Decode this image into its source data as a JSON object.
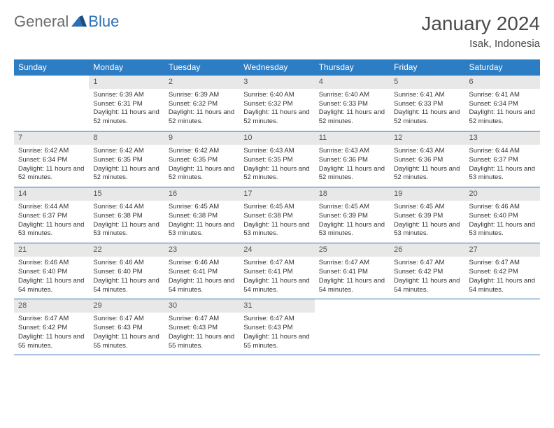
{
  "logo": {
    "general": "General",
    "blue": "Blue"
  },
  "title": "January 2024",
  "location": "Isak, Indonesia",
  "headers": [
    "Sunday",
    "Monday",
    "Tuesday",
    "Wednesday",
    "Thursday",
    "Friday",
    "Saturday"
  ],
  "header_bg": "#2d7dc4",
  "header_fg": "#ffffff",
  "border_color": "#2d6fb5",
  "daynum_bg": "#e8e8e8",
  "weeks": [
    [
      {
        "n": "",
        "sr": "",
        "ss": "",
        "dl": ""
      },
      {
        "n": "1",
        "sr": "Sunrise: 6:39 AM",
        "ss": "Sunset: 6:31 PM",
        "dl": "Daylight: 11 hours and 52 minutes."
      },
      {
        "n": "2",
        "sr": "Sunrise: 6:39 AM",
        "ss": "Sunset: 6:32 PM",
        "dl": "Daylight: 11 hours and 52 minutes."
      },
      {
        "n": "3",
        "sr": "Sunrise: 6:40 AM",
        "ss": "Sunset: 6:32 PM",
        "dl": "Daylight: 11 hours and 52 minutes."
      },
      {
        "n": "4",
        "sr": "Sunrise: 6:40 AM",
        "ss": "Sunset: 6:33 PM",
        "dl": "Daylight: 11 hours and 52 minutes."
      },
      {
        "n": "5",
        "sr": "Sunrise: 6:41 AM",
        "ss": "Sunset: 6:33 PM",
        "dl": "Daylight: 11 hours and 52 minutes."
      },
      {
        "n": "6",
        "sr": "Sunrise: 6:41 AM",
        "ss": "Sunset: 6:34 PM",
        "dl": "Daylight: 11 hours and 52 minutes."
      }
    ],
    [
      {
        "n": "7",
        "sr": "Sunrise: 6:42 AM",
        "ss": "Sunset: 6:34 PM",
        "dl": "Daylight: 11 hours and 52 minutes."
      },
      {
        "n": "8",
        "sr": "Sunrise: 6:42 AM",
        "ss": "Sunset: 6:35 PM",
        "dl": "Daylight: 11 hours and 52 minutes."
      },
      {
        "n": "9",
        "sr": "Sunrise: 6:42 AM",
        "ss": "Sunset: 6:35 PM",
        "dl": "Daylight: 11 hours and 52 minutes."
      },
      {
        "n": "10",
        "sr": "Sunrise: 6:43 AM",
        "ss": "Sunset: 6:35 PM",
        "dl": "Daylight: 11 hours and 52 minutes."
      },
      {
        "n": "11",
        "sr": "Sunrise: 6:43 AM",
        "ss": "Sunset: 6:36 PM",
        "dl": "Daylight: 11 hours and 52 minutes."
      },
      {
        "n": "12",
        "sr": "Sunrise: 6:43 AM",
        "ss": "Sunset: 6:36 PM",
        "dl": "Daylight: 11 hours and 52 minutes."
      },
      {
        "n": "13",
        "sr": "Sunrise: 6:44 AM",
        "ss": "Sunset: 6:37 PM",
        "dl": "Daylight: 11 hours and 53 minutes."
      }
    ],
    [
      {
        "n": "14",
        "sr": "Sunrise: 6:44 AM",
        "ss": "Sunset: 6:37 PM",
        "dl": "Daylight: 11 hours and 53 minutes."
      },
      {
        "n": "15",
        "sr": "Sunrise: 6:44 AM",
        "ss": "Sunset: 6:38 PM",
        "dl": "Daylight: 11 hours and 53 minutes."
      },
      {
        "n": "16",
        "sr": "Sunrise: 6:45 AM",
        "ss": "Sunset: 6:38 PM",
        "dl": "Daylight: 11 hours and 53 minutes."
      },
      {
        "n": "17",
        "sr": "Sunrise: 6:45 AM",
        "ss": "Sunset: 6:38 PM",
        "dl": "Daylight: 11 hours and 53 minutes."
      },
      {
        "n": "18",
        "sr": "Sunrise: 6:45 AM",
        "ss": "Sunset: 6:39 PM",
        "dl": "Daylight: 11 hours and 53 minutes."
      },
      {
        "n": "19",
        "sr": "Sunrise: 6:45 AM",
        "ss": "Sunset: 6:39 PM",
        "dl": "Daylight: 11 hours and 53 minutes."
      },
      {
        "n": "20",
        "sr": "Sunrise: 6:46 AM",
        "ss": "Sunset: 6:40 PM",
        "dl": "Daylight: 11 hours and 53 minutes."
      }
    ],
    [
      {
        "n": "21",
        "sr": "Sunrise: 6:46 AM",
        "ss": "Sunset: 6:40 PM",
        "dl": "Daylight: 11 hours and 54 minutes."
      },
      {
        "n": "22",
        "sr": "Sunrise: 6:46 AM",
        "ss": "Sunset: 6:40 PM",
        "dl": "Daylight: 11 hours and 54 minutes."
      },
      {
        "n": "23",
        "sr": "Sunrise: 6:46 AM",
        "ss": "Sunset: 6:41 PM",
        "dl": "Daylight: 11 hours and 54 minutes."
      },
      {
        "n": "24",
        "sr": "Sunrise: 6:47 AM",
        "ss": "Sunset: 6:41 PM",
        "dl": "Daylight: 11 hours and 54 minutes."
      },
      {
        "n": "25",
        "sr": "Sunrise: 6:47 AM",
        "ss": "Sunset: 6:41 PM",
        "dl": "Daylight: 11 hours and 54 minutes."
      },
      {
        "n": "26",
        "sr": "Sunrise: 6:47 AM",
        "ss": "Sunset: 6:42 PM",
        "dl": "Daylight: 11 hours and 54 minutes."
      },
      {
        "n": "27",
        "sr": "Sunrise: 6:47 AM",
        "ss": "Sunset: 6:42 PM",
        "dl": "Daylight: 11 hours and 54 minutes."
      }
    ],
    [
      {
        "n": "28",
        "sr": "Sunrise: 6:47 AM",
        "ss": "Sunset: 6:42 PM",
        "dl": "Daylight: 11 hours and 55 minutes."
      },
      {
        "n": "29",
        "sr": "Sunrise: 6:47 AM",
        "ss": "Sunset: 6:43 PM",
        "dl": "Daylight: 11 hours and 55 minutes."
      },
      {
        "n": "30",
        "sr": "Sunrise: 6:47 AM",
        "ss": "Sunset: 6:43 PM",
        "dl": "Daylight: 11 hours and 55 minutes."
      },
      {
        "n": "31",
        "sr": "Sunrise: 6:47 AM",
        "ss": "Sunset: 6:43 PM",
        "dl": "Daylight: 11 hours and 55 minutes."
      },
      {
        "n": "",
        "sr": "",
        "ss": "",
        "dl": ""
      },
      {
        "n": "",
        "sr": "",
        "ss": "",
        "dl": ""
      },
      {
        "n": "",
        "sr": "",
        "ss": "",
        "dl": ""
      }
    ]
  ]
}
